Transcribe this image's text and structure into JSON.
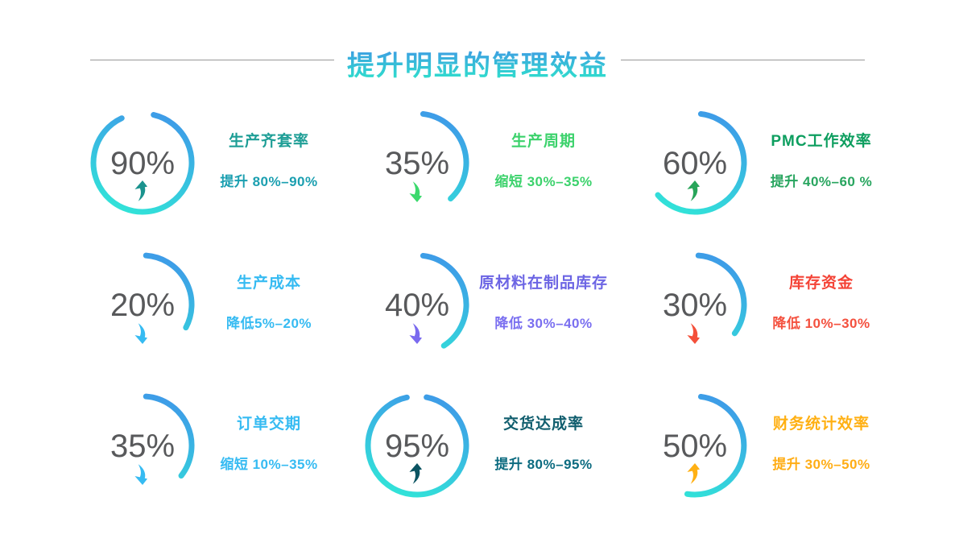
{
  "page": {
    "title": "提升明显的管理效益",
    "title_gradient": [
      "#3F93E6",
      "#2EE3CB"
    ],
    "divider_color": "#979797",
    "background": "#FFFFFF"
  },
  "chart_data": {
    "type": "donut-stat-grid",
    "description": "Nine gauge/donut percentage stats in a 3x3 grid, each with a trend arrow, a colored metric title and a colored range subtitle",
    "arc_gradient": [
      "#3E9AE8",
      "#31E4D8"
    ],
    "value_color": "#58595B",
    "items": [
      {
        "value": "90%",
        "percent": 90,
        "arc_start_deg": 13,
        "arc_sweep_deg": 322,
        "trend": "up",
        "title": "生产齐套率",
        "title_color": "#1E9E96",
        "subtitle": "提升 80%–90%",
        "subtitle_color": "#1B9FB0",
        "arrow_color": "#1B938E"
      },
      {
        "value": "35%",
        "percent": 35,
        "arc_start_deg": 7,
        "arc_sweep_deg": 130,
        "trend": "down",
        "title": "生产周期",
        "title_color": "#3CD26C",
        "subtitle": "缩短 30%–35%",
        "subtitle_color": "#3CD26C",
        "arrow_color": "#3CD96D"
      },
      {
        "value": "60%",
        "percent": 60,
        "arc_start_deg": 7,
        "arc_sweep_deg": 222,
        "trend": "up",
        "title": "PMC工作效率",
        "title_color": "#0D9E5F",
        "subtitle": "提升 40%–60 %",
        "subtitle_color": "#28A55F",
        "arrow_color": "#28A55A"
      },
      {
        "value": "20%",
        "percent": 20,
        "arc_start_deg": 4,
        "arc_sweep_deg": 114,
        "trend": "down",
        "title": "生产成本",
        "title_color": "#36BBF2",
        "subtitle": "降低5%–20%",
        "subtitle_color": "#36BBF2",
        "arrow_color": "#36BBF2"
      },
      {
        "value": "40%",
        "percent": 40,
        "arc_start_deg": 7,
        "arc_sweep_deg": 140,
        "trend": "down",
        "title": "原材料在制品库存",
        "title_color": "#6C65E4",
        "subtitle": "降低 30%–40%",
        "subtitle_color": "#7A6FF0",
        "arrow_color": "#7A6AEF"
      },
      {
        "value": "30%",
        "percent": 30,
        "arc_start_deg": 4,
        "arc_sweep_deg": 122,
        "trend": "down",
        "title": "库存资金",
        "title_color": "#F44336",
        "subtitle": "降低 10%–30%",
        "subtitle_color": "#F4503E",
        "arrow_color": "#F4503A"
      },
      {
        "value": "35%",
        "percent": 35,
        "arc_start_deg": 4,
        "arc_sweep_deg": 124,
        "trend": "down",
        "title": "订单交期",
        "title_color": "#36BBF2",
        "subtitle": "缩短 10%–35%",
        "subtitle_color": "#36BBF2",
        "arrow_color": "#36BBF2"
      },
      {
        "value": "95%",
        "percent": 95,
        "arc_start_deg": 11,
        "arc_sweep_deg": 337,
        "trend": "up",
        "title": "交货达成率",
        "title_color": "#115E6E",
        "subtitle": "提升 80%–95%",
        "subtitle_color": "#0C6B80",
        "arrow_color": "#0B5462"
      },
      {
        "value": "50%",
        "percent": 50,
        "arc_start_deg": 7,
        "arc_sweep_deg": 182,
        "trend": "up",
        "title": "财务统计效率",
        "title_color": "#FFB013",
        "subtitle": "提升 30%–50%",
        "subtitle_color": "#FFAD15",
        "arrow_color": "#FFB013"
      }
    ]
  }
}
